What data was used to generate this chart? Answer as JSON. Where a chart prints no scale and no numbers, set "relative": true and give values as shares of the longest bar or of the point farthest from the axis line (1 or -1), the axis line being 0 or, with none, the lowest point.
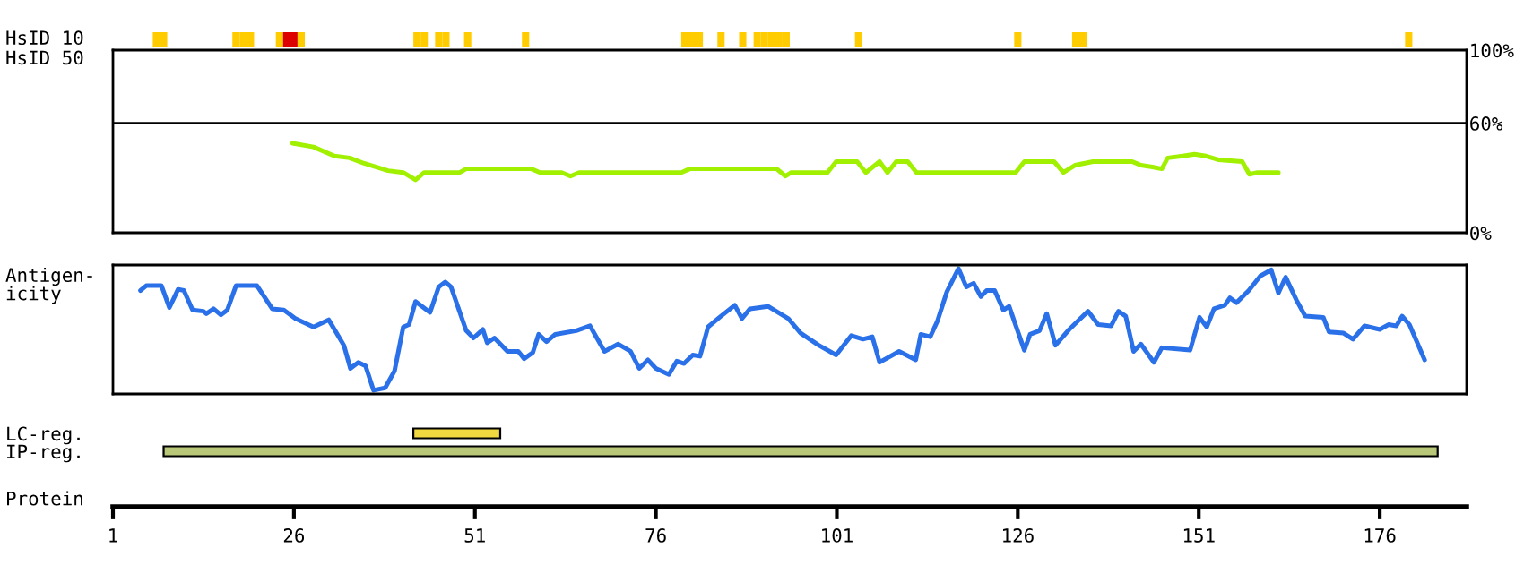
{
  "chart_data": [
    {
      "type": "bar",
      "ylabel": "HsID 10",
      "relative": true,
      "tick_labels": false,
      "xlim": [
        1,
        188
      ],
      "x": [
        7,
        8,
        18,
        19,
        20,
        24,
        25,
        26,
        27,
        43,
        44,
        46,
        47,
        50,
        58,
        80,
        81,
        82,
        85,
        88,
        90,
        91,
        92,
        93,
        94,
        104,
        126,
        134,
        135,
        180
      ],
      "values": [
        1,
        1,
        1,
        1,
        1,
        1,
        1,
        1,
        1,
        1,
        1,
        1,
        1,
        1,
        1,
        1,
        1,
        1,
        1,
        1,
        1,
        1,
        1,
        1,
        1,
        1,
        1,
        1,
        1,
        1
      ],
      "colors": [
        "#ffcc00",
        "#ffcc00",
        "#ffcc00",
        "#ffcc00",
        "#ffcc00",
        "#ffcc00",
        "#dd0000",
        "#dd0000",
        "#ffcc00",
        "#ffcc00",
        "#ffcc00",
        "#ffcc00",
        "#ffcc00",
        "#ffcc00",
        "#ffcc00",
        "#ffcc00",
        "#ffcc00",
        "#ffcc00",
        "#ffcc00",
        "#ffcc00",
        "#ffcc00",
        "#ffcc00",
        "#ffcc00",
        "#ffcc00",
        "#ffcc00",
        "#ffcc00",
        "#ffcc00",
        "#ffcc00",
        "#ffcc00",
        "#ffcc00"
      ]
    },
    {
      "type": "line",
      "ylabel": "HsID 50",
      "tick_labels": "y",
      "xlim": [
        1,
        188
      ],
      "ylim": [
        0,
        100
      ],
      "yticks": [
        {
          "value": 100,
          "label": "100%"
        },
        {
          "value": 60,
          "label": "60%"
        },
        {
          "value": 0,
          "label": "0%"
        }
      ],
      "ref_lines": [
        {
          "axis": "y",
          "value": 60,
          "color": "#000000"
        }
      ],
      "series": [
        {
          "color": "#a0f000",
          "x": [
            25.8,
            28.7,
            31.6,
            33.7,
            35.7,
            39,
            41.1,
            42.8,
            44,
            48.9,
            49.8,
            58.8,
            60,
            63,
            64.2,
            65.4,
            79.5,
            80.7,
            92.7,
            93.9,
            94.7,
            99.7,
            100.9,
            103.8,
            105,
            106.9,
            108,
            109.2,
            110.8,
            112,
            125.7,
            126.9,
            131,
            132.3,
            133.9,
            136.4,
            141.8,
            143,
            144.6,
            145.9,
            146.7,
            148.8,
            150.4,
            152,
            153.7,
            157,
            158,
            159.1,
            162
          ],
          "values": [
            49,
            47,
            42,
            41,
            38,
            34,
            33,
            29,
            33,
            33,
            35,
            35,
            33,
            33,
            31,
            33,
            33,
            35,
            35,
            31,
            33,
            33,
            39,
            39,
            33,
            39,
            33,
            39,
            39,
            33,
            33,
            39,
            39,
            33,
            37,
            39,
            39,
            37,
            36,
            35,
            41,
            42,
            43,
            42,
            40,
            39,
            32,
            33,
            33
          ]
        }
      ]
    },
    {
      "type": "line",
      "ylabel": "Antigen-\nicity",
      "relative": true,
      "tick_labels": false,
      "xlim": [
        1,
        188
      ],
      "series": [
        {
          "color": "#2a70e8",
          "x": [
            4.8,
            5.6,
            7.7,
            8.8,
            10,
            10.8,
            12,
            13.5,
            13.9,
            14.9,
            15.9,
            16.8,
            18,
            20.9,
            23,
            24.6,
            26.2,
            28.7,
            30.8,
            32.9,
            33.8,
            34.9,
            35.9,
            37,
            38.6,
            39.9,
            41.1,
            41.9,
            42.8,
            44.8,
            46,
            46.9,
            47.7,
            49.8,
            50.8,
            52.1,
            52.7,
            53.7,
            55.5,
            57,
            57.8,
            59,
            59.8,
            60.9,
            62.1,
            65,
            66.9,
            68.9,
            70.8,
            72.5,
            73.7,
            74.9,
            76,
            77.8,
            78.9,
            79.9,
            81.1,
            82.1,
            83.2,
            84.8,
            86.9,
            87.9,
            89,
            91.5,
            94.3,
            96,
            98.5,
            100.9,
            103,
            104.6,
            105.9,
            106.9,
            109.6,
            111.9,
            112.6,
            113.9,
            114.9,
            116.2,
            117.8,
            118.9,
            119.9,
            120.9,
            121.7,
            122.8,
            124,
            124.8,
            126.9,
            127.7,
            129,
            130,
            131.2,
            133.1,
            134.3,
            135.7,
            137.1,
            138.9,
            139.9,
            140.9,
            142,
            143,
            144.8,
            145.9,
            149.8,
            151.1,
            152.1,
            153.1,
            154.6,
            155.3,
            156.2,
            157.9,
            159.5,
            161,
            162,
            163,
            164.5,
            165.7,
            168.2,
            169,
            171,
            172.3,
            173.9,
            176,
            177.2,
            178.3,
            179.1,
            180.1,
            182.2
          ],
          "values": [
            0.82,
            0.86,
            0.86,
            0.68,
            0.83,
            0.82,
            0.66,
            0.65,
            0.63,
            0.67,
            0.62,
            0.66,
            0.86,
            0.86,
            0.67,
            0.66,
            0.59,
            0.52,
            0.58,
            0.37,
            0.18,
            0.23,
            0.2,
            0,
            0.02,
            0.16,
            0.52,
            0.54,
            0.73,
            0.64,
            0.85,
            0.89,
            0.85,
            0.49,
            0.43,
            0.5,
            0.39,
            0.43,
            0.32,
            0.32,
            0.26,
            0.31,
            0.46,
            0.4,
            0.46,
            0.49,
            0.53,
            0.32,
            0.38,
            0.32,
            0.18,
            0.25,
            0.18,
            0.13,
            0.24,
            0.22,
            0.29,
            0.28,
            0.52,
            0.6,
            0.7,
            0.59,
            0.67,
            0.69,
            0.59,
            0.47,
            0.37,
            0.29,
            0.45,
            0.42,
            0.44,
            0.23,
            0.32,
            0.25,
            0.46,
            0.44,
            0.57,
            0.81,
            1,
            0.85,
            0.88,
            0.77,
            0.82,
            0.82,
            0.66,
            0.69,
            0.33,
            0.46,
            0.49,
            0.63,
            0.37,
            0.5,
            0.57,
            0.65,
            0.54,
            0.53,
            0.65,
            0.61,
            0.32,
            0.38,
            0.23,
            0.35,
            0.33,
            0.6,
            0.52,
            0.67,
            0.7,
            0.76,
            0.72,
            0.82,
            0.94,
            0.99,
            0.8,
            0.93,
            0.74,
            0.61,
            0.6,
            0.48,
            0.47,
            0.42,
            0.53,
            0.5,
            0.54,
            0.53,
            0.61,
            0.54,
            0.25
          ]
        }
      ]
    },
    {
      "type": "bar",
      "orientation": "horizontal",
      "tick_labels": "x",
      "xlabel": "Protein",
      "xlim": [
        1,
        188
      ],
      "xticks": [
        1,
        26,
        51,
        76,
        101,
        126,
        151,
        176
      ],
      "categories": [
        "LC-reg.",
        "IP-reg."
      ],
      "base": [
        42.5,
        8
      ],
      "values": [
        12,
        176
      ],
      "colors": [
        "#f0d840",
        "#b8c878"
      ]
    }
  ]
}
